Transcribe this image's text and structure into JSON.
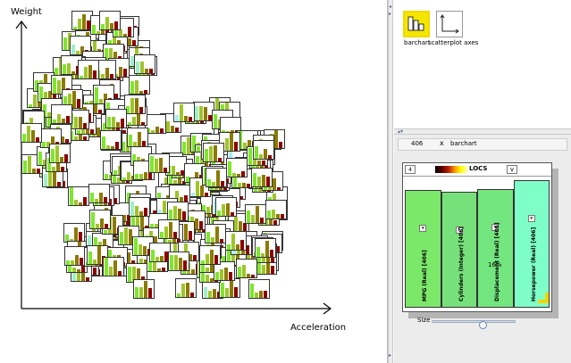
{
  "scatterplot": {
    "y_axis_label": "Weight",
    "x_axis_label": "Acceleration",
    "glyph_count": 406,
    "glyph_colors": {
      "mpg": "#7fe62e",
      "cylinders": "#9fc52a",
      "displacement": "#8a7a00",
      "horsepower": "#8b0000",
      "high": "#9ff0c8",
      "cyan": "#a8ecf4"
    }
  },
  "palette": {
    "items": [
      {
        "label": "barchart",
        "icon": "barchart-icon",
        "selected": true
      },
      {
        "label": "scatterplot axes",
        "icon": "scatterplot-axes-icon",
        "selected": false
      }
    ]
  },
  "viewer": {
    "count": "406",
    "close_symbol": "x",
    "name": "barchart",
    "header": {
      "spin_value": "4",
      "metric_label": "LOCS",
      "dropdown_symbol": "v"
    },
    "bars": [
      {
        "label": "MPG (Real) [406]",
        "value": 0.92,
        "color": "#7ce86a"
      },
      {
        "label": "Cylinders (Integer) [406]",
        "value": 0.91,
        "color": "#76e07a"
      },
      {
        "label": "Displacement (Real) [406]",
        "value": 0.93,
        "color": "#74e680"
      },
      {
        "label": "Horsepower (Real) [406]",
        "value": 1.0,
        "color": "#7fffc8"
      }
    ],
    "percent_text": "16%",
    "size_label": "Size",
    "size_value": 0.6
  }
}
